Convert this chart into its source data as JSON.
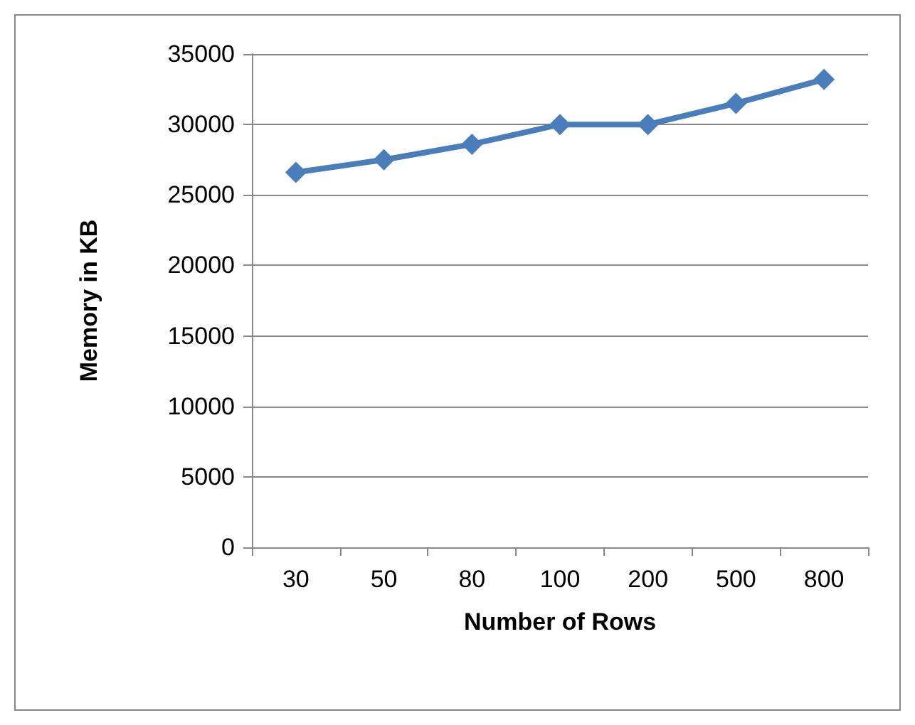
{
  "chart_data": {
    "type": "line",
    "xlabel": "Number of Rows",
    "ylabel": "Memory in KB",
    "categories": [
      "30",
      "50",
      "80",
      "100",
      "200",
      "500",
      "800"
    ],
    "series": [
      {
        "color": "#4a7ebb",
        "values": [
          26600,
          27500,
          28600,
          30000,
          30000,
          31500,
          33200
        ]
      }
    ],
    "ylim": [
      0,
      35000
    ],
    "yticks": [
      0,
      5000,
      10000,
      15000,
      20000,
      25000,
      30000,
      35000
    ],
    "grid": "y",
    "marker": "diamond",
    "line_style": "solid"
  }
}
